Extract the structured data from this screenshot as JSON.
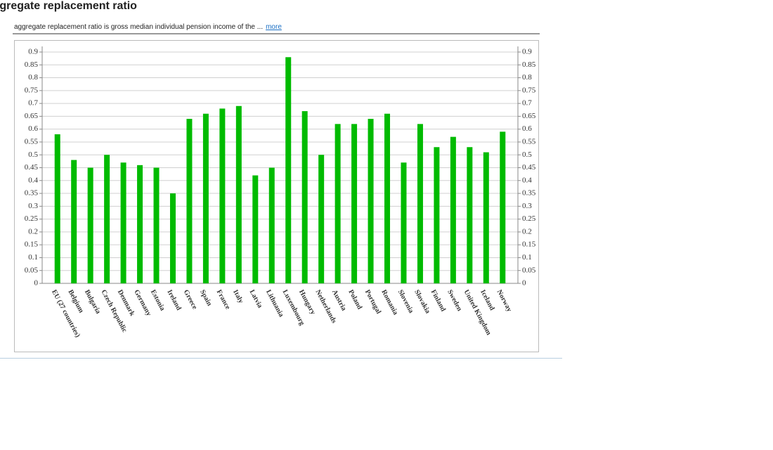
{
  "chart_data": {
    "type": "bar",
    "title": "Aggregate replacement ratio",
    "subtitle": "aggregate replacement ratio is gross median individual pension income of the ...",
    "link": "more",
    "categories": [
      "EU (27 countries)",
      "Belgium",
      "Bulgaria",
      "Czech Republic",
      "Denmark",
      "Germany",
      "Estonia",
      "Ireland",
      "Greece",
      "Spain",
      "France",
      "Italy",
      "Latvia",
      "Lithuania",
      "Luxembourg",
      "Hungary",
      "Netherlands",
      "Austria",
      "Poland",
      "Portugal",
      "Romania",
      "Slovenia",
      "Slovakia",
      "Finland",
      "Sweden",
      "United Kingdom",
      "Iceland",
      "Norway"
    ],
    "values": [
      0.58,
      0.48,
      0.45,
      0.5,
      0.47,
      0.46,
      0.45,
      0.35,
      0.64,
      0.66,
      0.68,
      0.69,
      0.42,
      0.45,
      0.88,
      0.67,
      0.5,
      0.62,
      0.62,
      0.64,
      0.66,
      0.47,
      0.62,
      0.53,
      0.57,
      0.53,
      0.51,
      0.59
    ],
    "color": "#00bb00",
    "ylim": [
      0,
      0.9
    ],
    "yticks": [
      0,
      0.05,
      0.1,
      0.15,
      0.2,
      0.25,
      0.3,
      0.35,
      0.4,
      0.45,
      0.5,
      0.55,
      0.6,
      0.65,
      0.7,
      0.75,
      0.8,
      0.85,
      0.9
    ],
    "y2lim": [
      0,
      0.9
    ],
    "y2ticks": [
      0,
      0.05,
      0.1,
      0.15,
      0.2,
      0.25,
      0.3,
      0.35,
      0.4,
      0.45,
      0.5,
      0.55,
      0.6,
      0.65,
      0.7,
      0.75,
      0.8,
      0.85,
      0.9
    ],
    "grid": true
  }
}
